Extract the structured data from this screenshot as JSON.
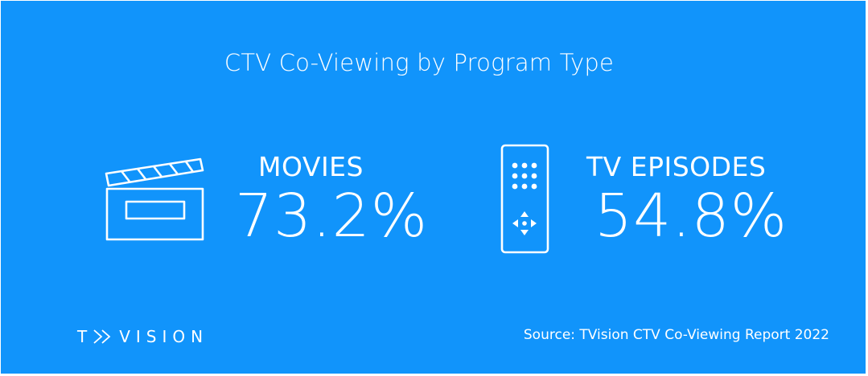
{
  "title": "CTV Co-Viewing by Program Type",
  "stats": [
    {
      "label": "MOVIES",
      "value": "73.2%",
      "icon": "clapperboard-icon"
    },
    {
      "label": "TV EPISODES",
      "value": "54.8%",
      "icon": "remote-control-icon"
    }
  ],
  "logo": {
    "text_left": "T",
    "text_right": "VISION"
  },
  "source": "Source: TVision CTV Co-Viewing Report 2022",
  "colors": {
    "background": "#1194fb",
    "foreground": "#ffffff"
  }
}
